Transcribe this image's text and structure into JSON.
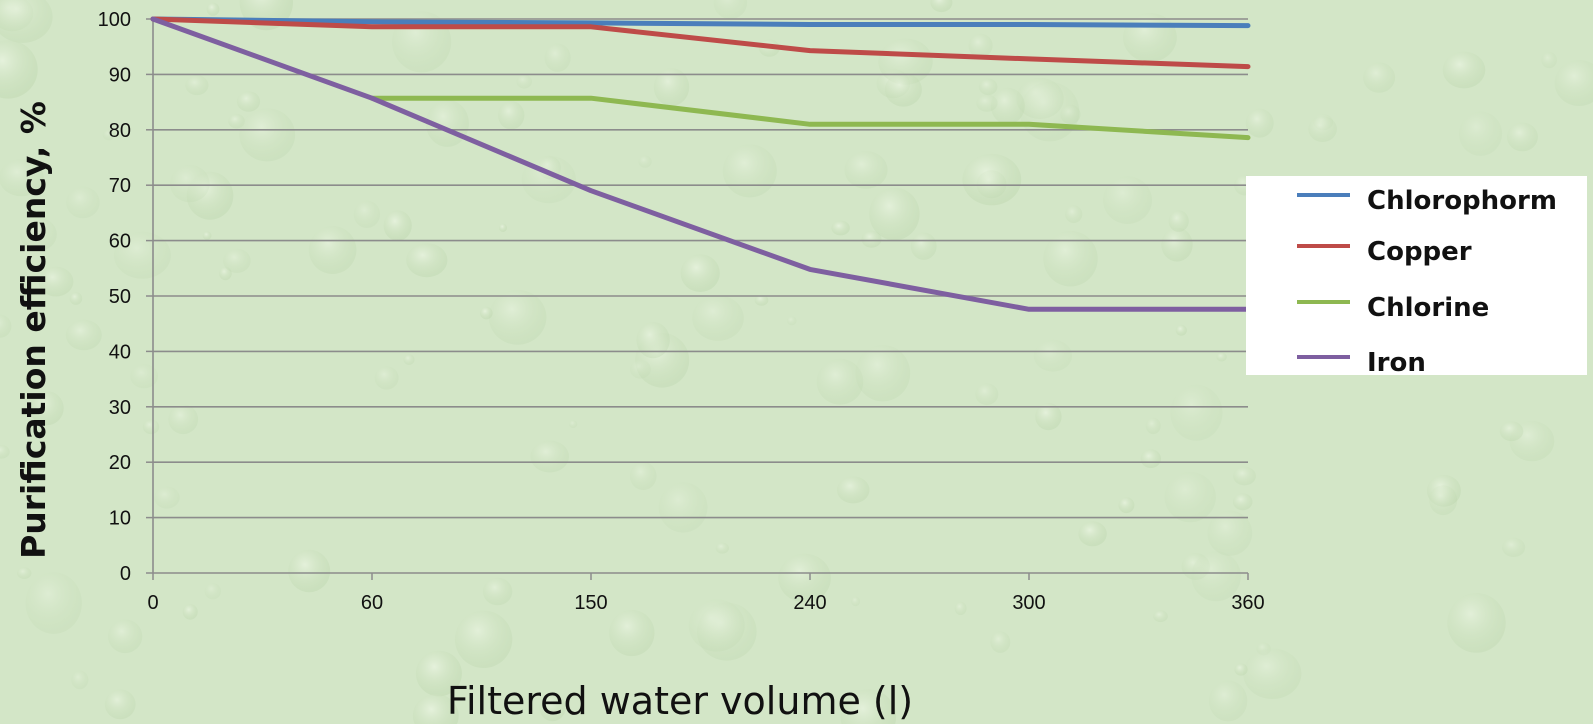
{
  "colors": {
    "background": "#d3e6c7",
    "gridline": "#8c8c8c",
    "axis": "#8c8c8c",
    "legend_bg": "#ffffff"
  },
  "chart_data": {
    "type": "line",
    "title": "",
    "xlabel": "Filtered water volume (l)",
    "ylabel": "Purification efficiency, %",
    "categories": [
      "0",
      "60",
      "150",
      "240",
      "300",
      "360"
    ],
    "ylim": [
      0,
      100
    ],
    "yticks": [
      "0",
      "10",
      "20",
      "30",
      "40",
      "50",
      "60",
      "70",
      "80",
      "90",
      "100"
    ],
    "grid": true,
    "legend_position": "right",
    "series": [
      {
        "name": "Chlorophorm",
        "color": "#4a7ebb",
        "values": [
          100,
          99.5,
          99.3,
          99,
          99,
          98.8
        ]
      },
      {
        "name": "Copper",
        "color": "#be4b48",
        "values": [
          100,
          98.6,
          98.6,
          94.3,
          92.8,
          91.4
        ]
      },
      {
        "name": "Chlorine",
        "color": "#8eb851",
        "values": [
          null,
          85.7,
          85.7,
          81,
          81,
          78.6
        ]
      },
      {
        "name": "Iron",
        "color": "#7e5fa0",
        "values": [
          100,
          85.7,
          69,
          54.8,
          47.6,
          47.6
        ]
      }
    ]
  }
}
